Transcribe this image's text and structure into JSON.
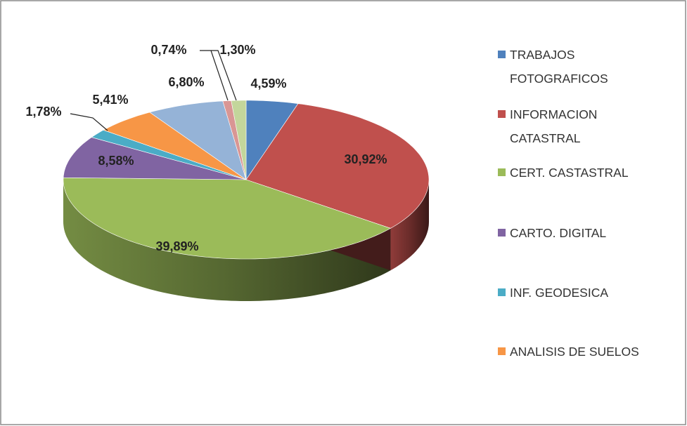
{
  "chart_data": {
    "type": "pie3d",
    "categories": [
      "TRABAJOS FOTOGRAFICOS",
      "INFORMACION CATASTRAL",
      "CERT. CASTASTRAL",
      "CARTO. DIGITAL",
      "INF. GEODESICA",
      "ANALISIS DE SUELOS",
      null,
      null,
      null
    ],
    "values": [
      4.59,
      30.92,
      39.89,
      8.58,
      1.78,
      5.41,
      6.8,
      0.74,
      1.3
    ],
    "value_labels": [
      "4,59%",
      "30,92%",
      "39,89%",
      "8,58%",
      "1,78%",
      "5,41%",
      "6,80%",
      "0,74%",
      "1,30%"
    ],
    "colors": [
      "#4f81bd",
      "#c0504d",
      "#9bbb59",
      "#8064a2",
      "#4bacc6",
      "#f79646",
      "#95b3d7",
      "#d99694",
      "#c3d69b"
    ],
    "legend": "right"
  }
}
